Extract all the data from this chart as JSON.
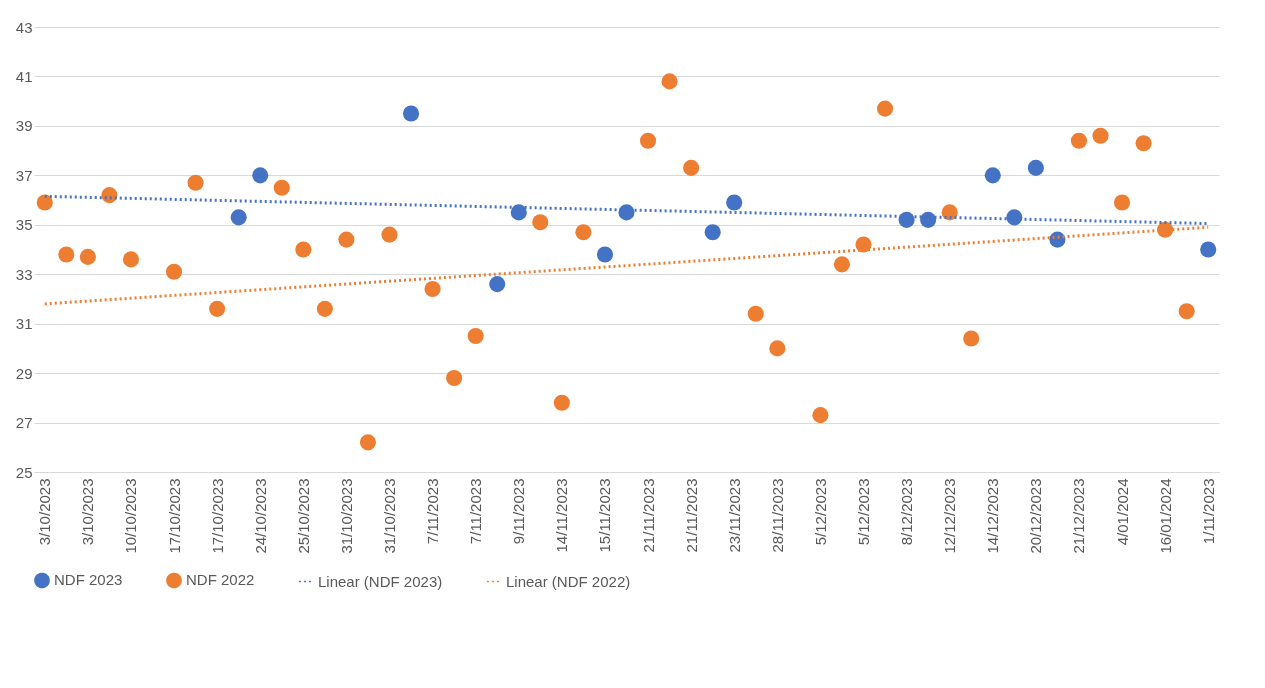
{
  "chart_data": {
    "type": "scatter",
    "categories": [
      "3/10/2023",
      null,
      "3/10/2023",
      null,
      "10/10/2023",
      null,
      "17/10/2023",
      null,
      "17/10/2023",
      null,
      "24/10/2023",
      null,
      "25/10/2023",
      null,
      "31/10/2023",
      null,
      "31/10/2023",
      null,
      "7/11/2023",
      null,
      "7/11/2023",
      null,
      "9/11/2023",
      null,
      "14/11/2023",
      null,
      "15/11/2023",
      null,
      "21/11/2023",
      null,
      "21/11/2023",
      null,
      "23/11/2023",
      null,
      "28/11/2023",
      null,
      "5/12/2023",
      null,
      "5/12/2023",
      null,
      "8/12/2023",
      null,
      "12/12/2023",
      null,
      "14/12/2023",
      null,
      "20/12/2023",
      null,
      "21/12/2023",
      null,
      "4/01/2024",
      null,
      "16/01/2024",
      null,
      "1/11/2023"
    ],
    "series": [
      {
        "name": "NDF 2023",
        "marker": "circle",
        "color": "#4472c4",
        "values": [
          null,
          null,
          null,
          null,
          null,
          null,
          null,
          null,
          null,
          35.3,
          37.0,
          null,
          null,
          null,
          null,
          null,
          null,
          39.5,
          null,
          null,
          null,
          32.6,
          35.5,
          null,
          null,
          null,
          33.8,
          35.5,
          null,
          null,
          null,
          34.7,
          35.9,
          null,
          null,
          null,
          null,
          null,
          null,
          null,
          35.2,
          35.2,
          null,
          null,
          37.0,
          35.3,
          37.3,
          34.4,
          null,
          null,
          null,
          null,
          null,
          null,
          34.0
        ]
      },
      {
        "name": "NDF 2022",
        "marker": "circle",
        "color": "#ed7d31",
        "values": [
          35.9,
          33.8,
          33.7,
          36.2,
          33.6,
          null,
          33.1,
          36.7,
          31.6,
          null,
          null,
          36.5,
          34.0,
          31.6,
          34.4,
          26.2,
          34.6,
          null,
          32.4,
          28.8,
          30.5,
          null,
          null,
          35.1,
          27.8,
          34.7,
          null,
          null,
          38.4,
          40.8,
          37.3,
          null,
          null,
          31.4,
          30.0,
          null,
          27.3,
          33.4,
          34.2,
          39.7,
          null,
          null,
          35.5,
          30.4,
          null,
          null,
          null,
          null,
          38.4,
          38.6,
          35.9,
          38.3,
          34.8,
          31.5,
          null
        ]
      },
      {
        "name": "Linear (NDF 2023)",
        "type": "line",
        "line_style": "dotted",
        "marker": "none",
        "color": "#4472c4",
        "values": [
          36.15,
          null,
          null,
          null,
          null,
          null,
          null,
          null,
          null,
          null,
          null,
          null,
          null,
          null,
          null,
          null,
          null,
          null,
          null,
          null,
          null,
          null,
          null,
          null,
          null,
          null,
          null,
          null,
          null,
          null,
          null,
          null,
          null,
          null,
          null,
          null,
          null,
          null,
          null,
          null,
          null,
          null,
          null,
          null,
          null,
          null,
          null,
          null,
          null,
          null,
          null,
          null,
          null,
          null,
          35.05
        ]
      },
      {
        "name": "Linear (NDF 2022)",
        "type": "line",
        "line_style": "dotted",
        "marker": "none",
        "color": "#ed7d31",
        "values": [
          31.8,
          null,
          null,
          null,
          null,
          null,
          null,
          null,
          null,
          null,
          null,
          null,
          null,
          null,
          null,
          null,
          null,
          null,
          null,
          null,
          null,
          null,
          null,
          null,
          null,
          null,
          null,
          null,
          null,
          null,
          null,
          null,
          null,
          null,
          null,
          null,
          null,
          null,
          null,
          null,
          null,
          null,
          null,
          null,
          null,
          null,
          null,
          null,
          null,
          null,
          null,
          null,
          null,
          null,
          34.9
        ]
      }
    ],
    "ylim": [
      25,
      43
    ],
    "yticks": [
      25,
      27,
      29,
      31,
      33,
      35,
      37,
      39,
      41,
      43
    ],
    "grid": "y",
    "legend": "bottom"
  }
}
